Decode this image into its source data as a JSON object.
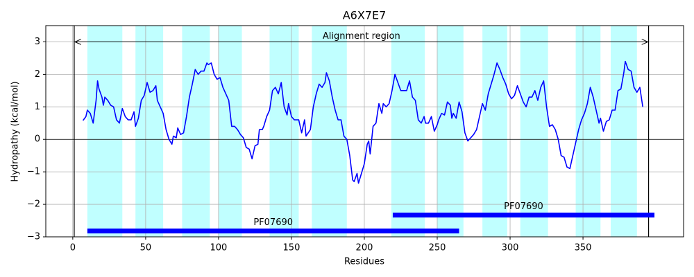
{
  "chart_data": {
    "type": "line",
    "title": "A6X7E7",
    "xlabel": "Residues",
    "ylabel": "Hydropathy (kcal/mol)",
    "xlim": [
      -18.5,
      419
    ],
    "ylim": [
      -3,
      3.5
    ],
    "xticks": [
      0,
      50,
      100,
      150,
      200,
      250,
      300,
      350
    ],
    "yticks": [
      {
        "value": -3,
        "label": "−3"
      },
      {
        "value": -2,
        "label": "−2"
      },
      {
        "value": -1,
        "label": "−1"
      },
      0,
      1,
      2,
      3
    ],
    "grid": true,
    "zero_line": 0,
    "highlight_color": "#c0ffff",
    "highlight_regions": [
      [
        10,
        34
      ],
      [
        43,
        62
      ],
      [
        75,
        94
      ],
      [
        100,
        116
      ],
      [
        135,
        155
      ],
      [
        164,
        188
      ],
      [
        218.5,
        241.5
      ],
      [
        250,
        268
      ],
      [
        281,
        298
      ],
      [
        307,
        326
      ],
      [
        345,
        362
      ],
      [
        369,
        387
      ]
    ],
    "alignment_region": {
      "label": "Alignment region",
      "start": 1,
      "end": 395,
      "y": 3
    },
    "domains": [
      {
        "name": "PF07690",
        "start": 10,
        "end": 265,
        "y": -2.82,
        "color": "#0000ff"
      },
      {
        "name": "PF07690",
        "start": 219.5,
        "end": 399,
        "y": -2.33,
        "color": "#0000ff"
      }
    ],
    "x": [
      7,
      9,
      10,
      12,
      14,
      16,
      17,
      18,
      20,
      21,
      22,
      24,
      26,
      28,
      30,
      32,
      34,
      36,
      38,
      40,
      42,
      43,
      45,
      47,
      49,
      51,
      53,
      55,
      57,
      58,
      60,
      62,
      64,
      66,
      68,
      69,
      71,
      72,
      74,
      76,
      78,
      80,
      82,
      84,
      86,
      88,
      90,
      92,
      93,
      95,
      97,
      99,
      101,
      103,
      105,
      107,
      109,
      111,
      113,
      115,
      117,
      119,
      121,
      123,
      125,
      127,
      128,
      130,
      131,
      133,
      135,
      137,
      139,
      141,
      143,
      145,
      147,
      148,
      150,
      152,
      155,
      157,
      159,
      160,
      163,
      165,
      167,
      169,
      171,
      173,
      174,
      176,
      178,
      180,
      182,
      184,
      186,
      188,
      190,
      192,
      193,
      195,
      196,
      198,
      200,
      202,
      203,
      204,
      206,
      208,
      210,
      212,
      213,
      215,
      217,
      219,
      221,
      223,
      225,
      227,
      229,
      231,
      233,
      235,
      237,
      239,
      241,
      242,
      244,
      246,
      248,
      250,
      251,
      253,
      255,
      257,
      259,
      260,
      261,
      263,
      265,
      267,
      269,
      271,
      273,
      275,
      277,
      279,
      281,
      283,
      285,
      287,
      289,
      291,
      293,
      295,
      297,
      299,
      301,
      303,
      305,
      307,
      309,
      311,
      313,
      315,
      317,
      319,
      321,
      323,
      325,
      327,
      329,
      331,
      333,
      335,
      337,
      339,
      341,
      343,
      345,
      347,
      349,
      351,
      353,
      355,
      357,
      359,
      361,
      362,
      364,
      366,
      368,
      370,
      372,
      374,
      376,
      378,
      379,
      381,
      383,
      385,
      387,
      389,
      391
    ],
    "series": [
      {
        "color": "#0000ff",
        "values": [
          0.58,
          0.7,
          0.9,
          0.8,
          0.5,
          1.2,
          1.8,
          1.55,
          1.3,
          1.05,
          1.3,
          1.2,
          1.05,
          1.0,
          0.6,
          0.5,
          0.95,
          0.7,
          0.6,
          0.6,
          0.85,
          0.4,
          0.65,
          1.2,
          1.35,
          1.75,
          1.45,
          1.5,
          1.65,
          1.2,
          1.0,
          0.8,
          0.3,
          0.0,
          -0.15,
          0.1,
          0.05,
          0.35,
          0.15,
          0.2,
          0.7,
          1.3,
          1.7,
          2.15,
          2.0,
          2.1,
          2.1,
          2.35,
          2.3,
          2.35,
          2.0,
          1.85,
          1.9,
          1.6,
          1.4,
          1.2,
          0.4,
          0.4,
          0.3,
          0.15,
          0.05,
          -0.25,
          -0.3,
          -0.6,
          -0.2,
          -0.15,
          0.3,
          0.3,
          0.4,
          0.7,
          0.9,
          1.5,
          1.6,
          1.4,
          1.75,
          1.0,
          0.75,
          1.1,
          0.7,
          0.6,
          0.6,
          0.2,
          0.6,
          0.1,
          0.3,
          1.0,
          1.4,
          1.7,
          1.6,
          1.75,
          2.05,
          1.8,
          1.3,
          0.9,
          0.6,
          0.6,
          0.1,
          0.0,
          -0.5,
          -1.25,
          -1.3,
          -1.05,
          -1.35,
          -1.05,
          -0.75,
          -0.15,
          -0.05,
          -0.45,
          0.4,
          0.5,
          1.1,
          0.8,
          1.1,
          1.0,
          1.1,
          1.5,
          2.0,
          1.75,
          1.5,
          1.5,
          1.5,
          1.8,
          1.3,
          1.2,
          0.6,
          0.5,
          0.7,
          0.5,
          0.5,
          0.7,
          0.25,
          0.45,
          0.6,
          0.8,
          0.75,
          1.15,
          1.05,
          0.65,
          0.8,
          0.65,
          1.15,
          0.85,
          0.2,
          -0.05,
          0.05,
          0.15,
          0.3,
          0.7,
          1.1,
          0.9,
          1.4,
          1.7,
          2.0,
          2.35,
          2.15,
          1.9,
          1.7,
          1.4,
          1.25,
          1.35,
          1.65,
          1.4,
          1.15,
          1.0,
          1.3,
          1.3,
          1.5,
          1.2,
          1.6,
          1.8,
          1.0,
          0.4,
          0.45,
          0.3,
          0.0,
          -0.5,
          -0.55,
          -0.85,
          -0.9,
          -0.5,
          -0.1,
          0.3,
          0.6,
          0.8,
          1.1,
          1.6,
          1.3,
          0.9,
          0.5,
          0.65,
          0.25,
          0.55,
          0.6,
          0.9,
          0.9,
          1.5,
          1.55,
          2.05,
          2.4,
          2.15,
          2.1,
          1.6,
          1.45,
          1.6,
          1.0
        ]
      }
    ]
  }
}
